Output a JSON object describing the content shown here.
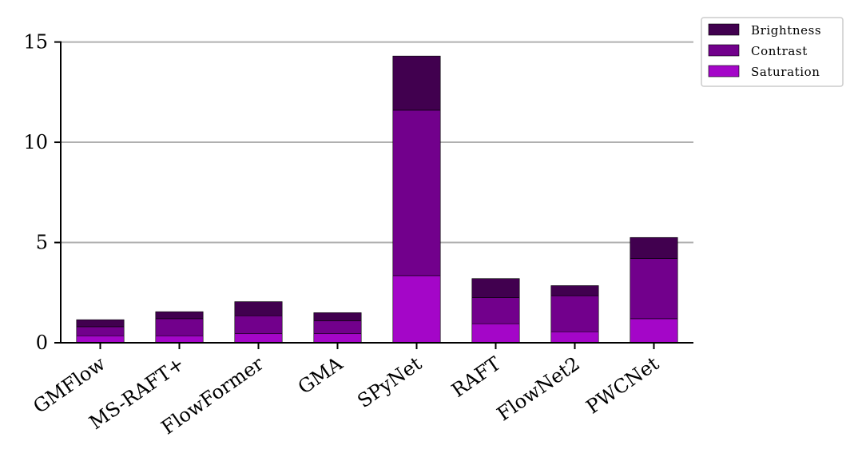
{
  "chart_data": {
    "type": "bar",
    "stacked": true,
    "categories": [
      "GMFlow",
      "MS-RAFT+",
      "FlowFormer",
      "GMA",
      "SPyNet",
      "RAFT",
      "FlowNet2",
      "PWCNet"
    ],
    "series": [
      {
        "name": "Saturation",
        "color": "#a406c8",
        "values": [
          0.35,
          0.35,
          0.45,
          0.45,
          3.35,
          0.95,
          0.55,
          1.2
        ]
      },
      {
        "name": "Contrast",
        "color": "#72008c",
        "values": [
          0.45,
          0.85,
          0.9,
          0.65,
          8.25,
          1.3,
          1.8,
          3.0
        ]
      },
      {
        "name": "Brightness",
        "color": "#41004f",
        "values": [
          0.35,
          0.35,
          0.7,
          0.4,
          2.7,
          0.95,
          0.5,
          1.05
        ]
      }
    ],
    "legend_order": [
      "Brightness",
      "Contrast",
      "Saturation"
    ],
    "legend_position": "top-right",
    "yticks": [
      0,
      5,
      10,
      15
    ],
    "ylim": [
      0,
      15.9
    ],
    "grid": "horizontal",
    "xtick_rotation": -35
  }
}
